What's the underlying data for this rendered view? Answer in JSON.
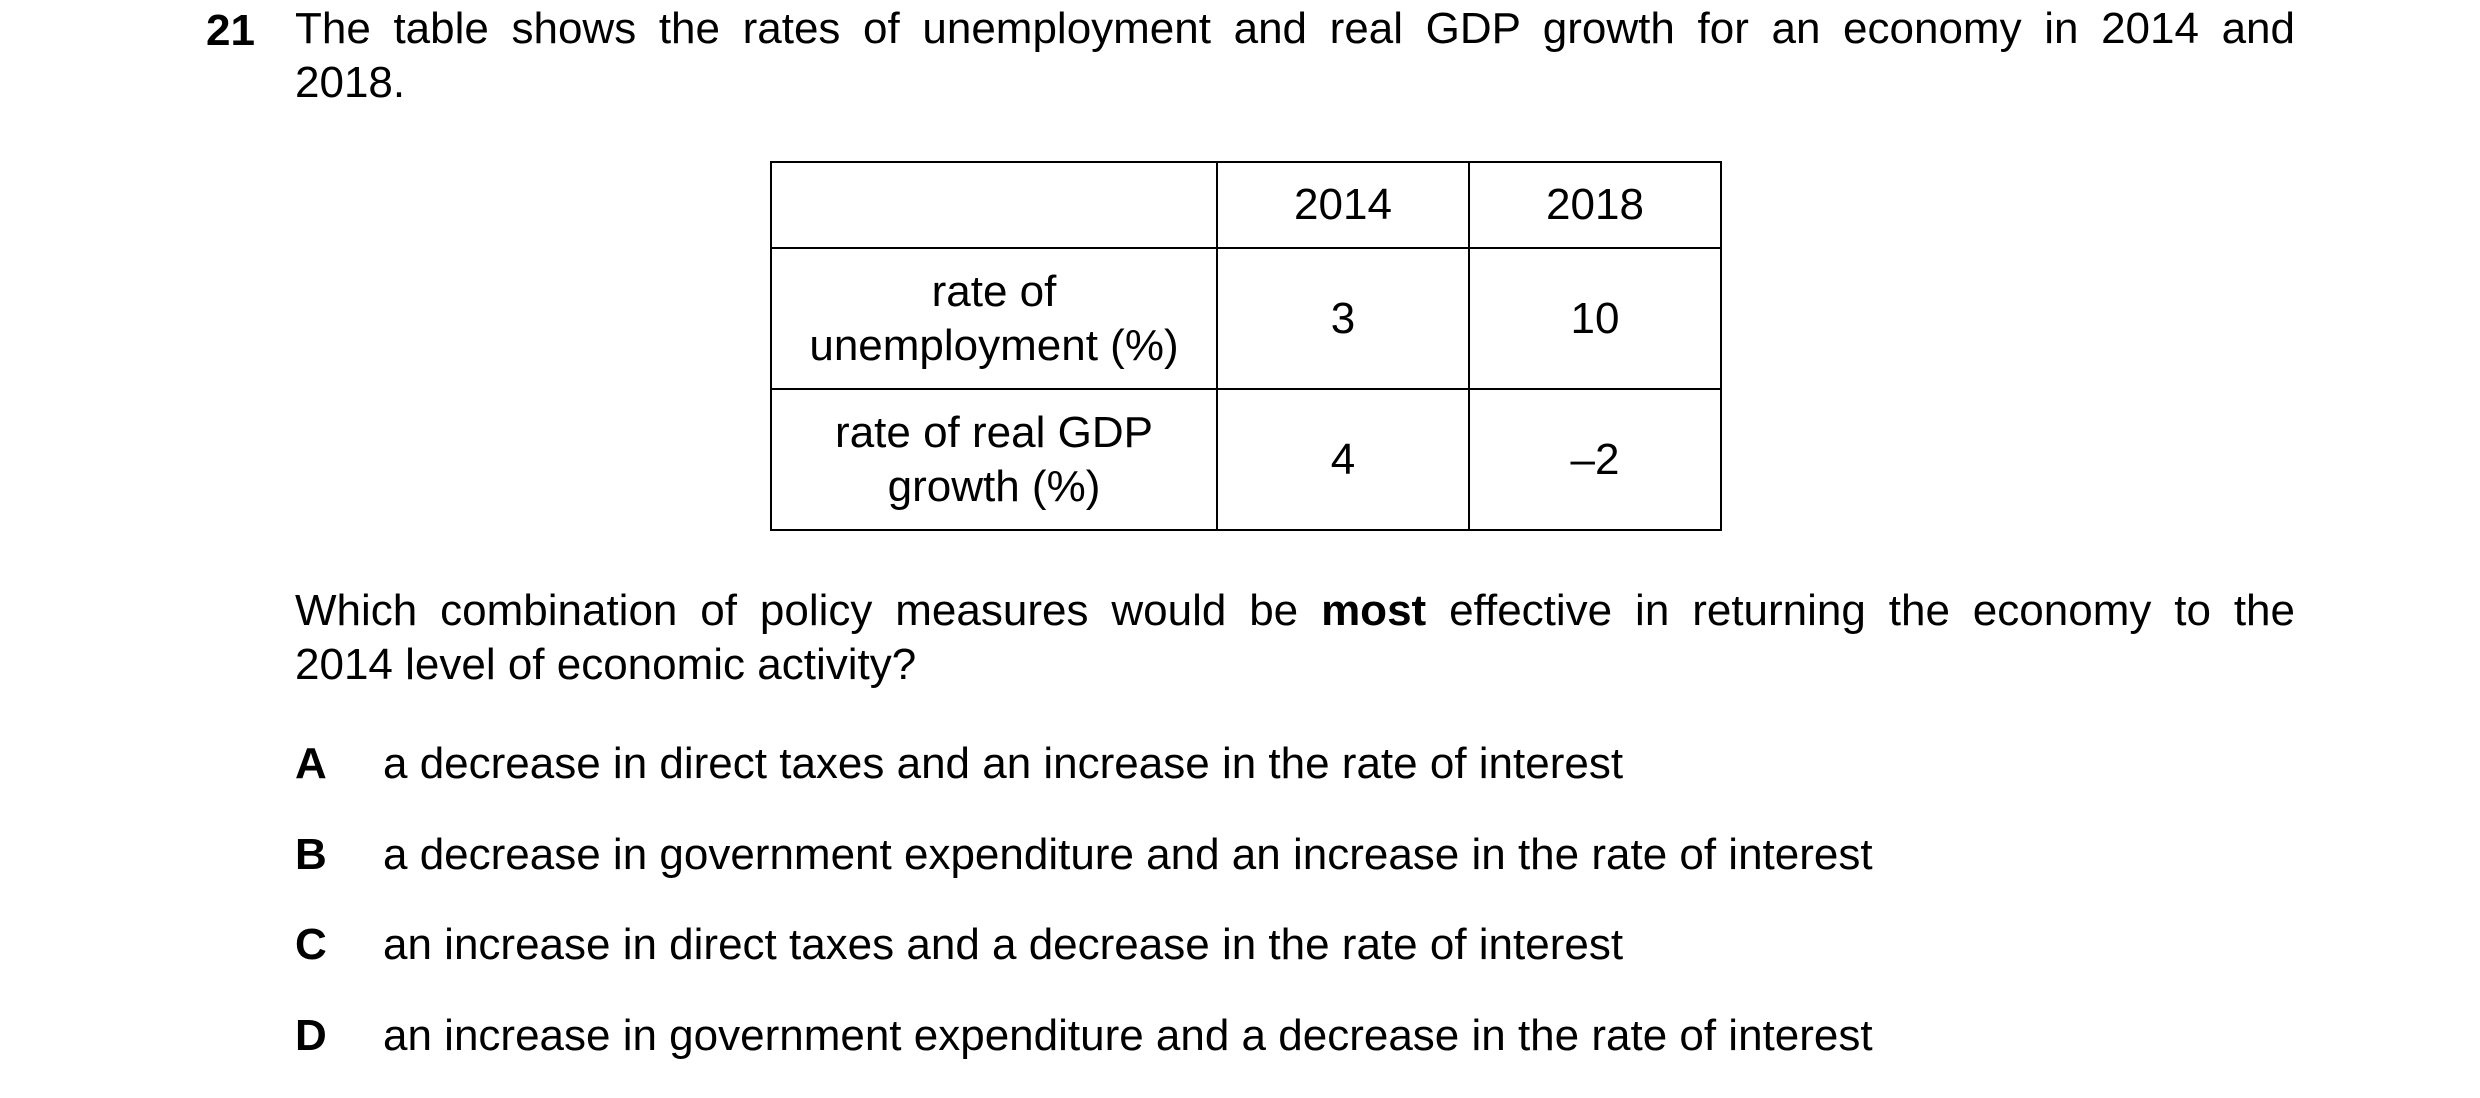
{
  "question": {
    "number": "21",
    "stem_line1": "The table shows the rates of unemployment and real GDP growth for an economy in 2014 and",
    "stem_line2": "2018.",
    "prompt_before": "Which combination of policy measures would be ",
    "prompt_bold": "most",
    "prompt_after": " effective in returning the economy to the",
    "prompt_line2": "2014 level of economic activity?"
  },
  "table": {
    "headers": [
      "",
      "2014",
      "2018"
    ],
    "rows": [
      {
        "label_line1": "rate of",
        "label_line2": "unemployment (%)",
        "values": [
          "3",
          "10"
        ]
      },
      {
        "label_line1": "rate of real GDP",
        "label_line2": "growth (%)",
        "values": [
          "4",
          "–2"
        ]
      }
    ]
  },
  "options": [
    {
      "letter": "A",
      "text": "a decrease in direct taxes and an increase in the rate of interest"
    },
    {
      "letter": "B",
      "text": "a decrease in government expenditure and an increase in the rate of interest"
    },
    {
      "letter": "C",
      "text": "an increase in direct taxes and a decrease in the rate of interest"
    },
    {
      "letter": "D",
      "text": "an increase in government expenditure and a decrease in the rate of interest"
    }
  ]
}
